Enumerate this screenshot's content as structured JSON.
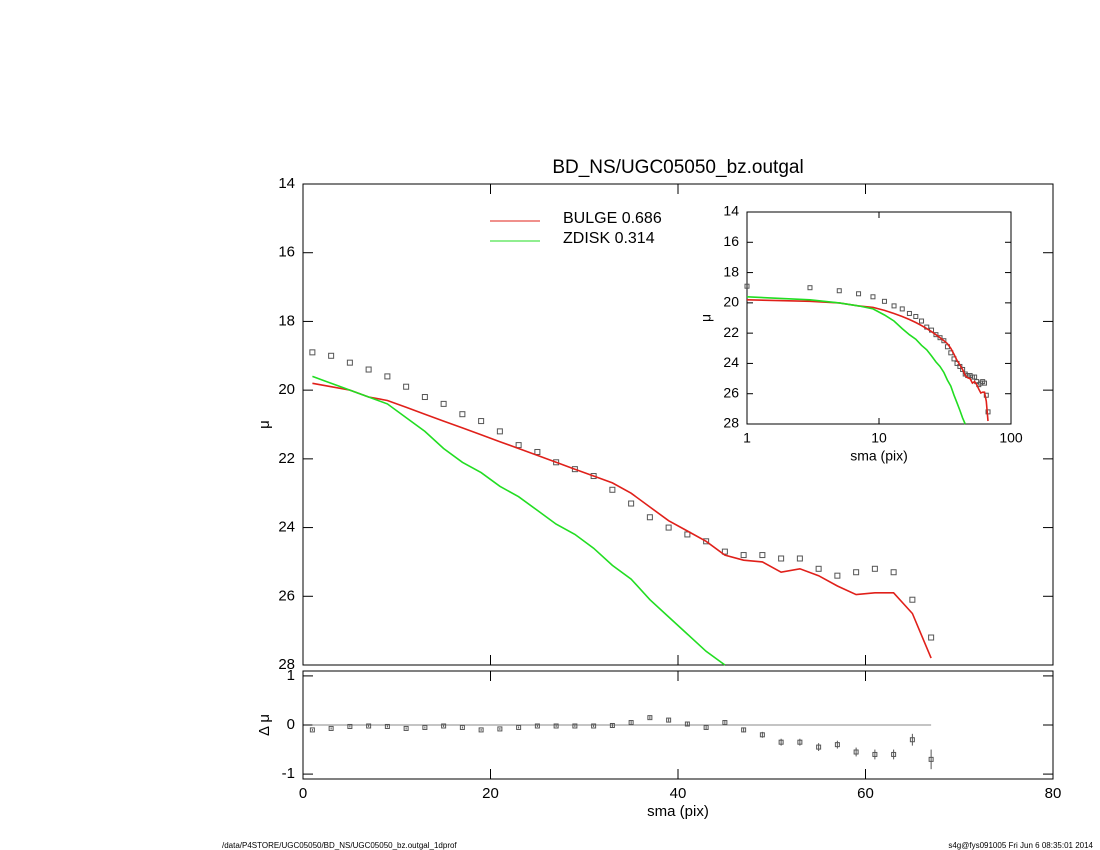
{
  "chart_data": [
    {
      "type": "line",
      "title": "BD_NS/UGC05050_bz.outgal",
      "ylabel": "μ",
      "y_reversed": true,
      "xlim": [
        0,
        80
      ],
      "xticks": [
        0,
        20,
        40,
        60,
        80
      ],
      "ylim": [
        14,
        28
      ],
      "yticks": [
        14,
        16,
        18,
        20,
        22,
        24,
        26,
        28
      ],
      "x": [
        1,
        3,
        5,
        7,
        9,
        11,
        13,
        15,
        17,
        19,
        21,
        23,
        25,
        27,
        29,
        31,
        33,
        35,
        37,
        39,
        41,
        43,
        45,
        47,
        49,
        51,
        53,
        55,
        57,
        59,
        61,
        63,
        65,
        67
      ],
      "points": {
        "color": "#555555",
        "values": [
          18.9,
          19.0,
          19.2,
          19.4,
          19.6,
          19.9,
          20.2,
          20.4,
          20.7,
          20.9,
          21.2,
          21.6,
          21.8,
          22.1,
          22.3,
          22.5,
          22.9,
          23.3,
          23.7,
          24.0,
          24.2,
          24.4,
          24.7,
          24.8,
          24.8,
          24.9,
          24.9,
          25.2,
          25.4,
          25.3,
          25.2,
          25.3,
          26.1,
          27.2
        ]
      },
      "series": [
        {
          "name": "BULGE  0.686",
          "color": "#e0201a",
          "values": [
            19.8,
            19.9,
            20.0,
            20.2,
            20.3,
            20.5,
            20.7,
            20.9,
            21.1,
            21.3,
            21.5,
            21.7,
            21.9,
            22.1,
            22.3,
            22.5,
            22.7,
            23.0,
            23.4,
            23.8,
            24.1,
            24.4,
            24.8,
            24.95,
            25.0,
            25.3,
            25.2,
            25.4,
            25.7,
            25.95,
            25.9,
            25.9,
            26.5,
            27.8
          ]
        },
        {
          "name": "ZDISK  0.314",
          "color": "#22dd22",
          "values": [
            19.6,
            19.8,
            20.0,
            20.2,
            20.4,
            20.8,
            21.2,
            21.7,
            22.1,
            22.4,
            22.8,
            23.1,
            23.5,
            23.9,
            24.2,
            24.6,
            25.1,
            25.5,
            26.1,
            26.6,
            27.1,
            27.6,
            28.0,
            null,
            null,
            null,
            null,
            null,
            null,
            null,
            null,
            null,
            null,
            null
          ]
        }
      ]
    },
    {
      "type": "scatter",
      "ylabel": "Δ μ",
      "xlabel": "sma (pix)",
      "xlim": [
        0,
        80
      ],
      "xticks": [
        0,
        20,
        40,
        60,
        80
      ],
      "ylim": [
        -1.1,
        1.1
      ],
      "yticks": [
        1,
        0,
        -1
      ],
      "values": [
        -0.1,
        -0.07,
        -0.03,
        -0.02,
        -0.03,
        -0.07,
        -0.05,
        -0.02,
        -0.05,
        -0.1,
        -0.08,
        -0.05,
        -0.02,
        -0.02,
        -0.02,
        -0.02,
        -0.01,
        0.05,
        0.15,
        0.1,
        0.02,
        -0.05,
        0.05,
        -0.1,
        -0.2,
        -0.35,
        -0.35,
        -0.45,
        -0.4,
        -0.55,
        -0.6,
        -0.6,
        -0.3,
        -0.7
      ],
      "errors": [
        0.02,
        0.02,
        0.02,
        0.02,
        0.02,
        0.02,
        0.02,
        0.02,
        0.02,
        0.02,
        0.02,
        0.02,
        0.02,
        0.02,
        0.02,
        0.02,
        0.03,
        0.03,
        0.03,
        0.03,
        0.04,
        0.04,
        0.05,
        0.05,
        0.06,
        0.07,
        0.07,
        0.08,
        0.08,
        0.09,
        0.1,
        0.1,
        0.12,
        0.2
      ]
    },
    {
      "type": "line",
      "log_x": true,
      "xlabel": "sma (pix)",
      "ylabel": "μ",
      "y_reversed": true,
      "xlim": [
        1,
        100
      ],
      "xticks": [
        1,
        10,
        100
      ],
      "ylim": [
        14,
        28
      ],
      "yticks": [
        14,
        16,
        18,
        20,
        22,
        24,
        26,
        28
      ]
    }
  ],
  "footer": {
    "left": "/data/P4STORE/UGC05050/BD_NS/UGC05050_bz.outgal_1dprof",
    "right": "s4g@fys091005  Fri Jun  6 08:35:01 2014"
  }
}
